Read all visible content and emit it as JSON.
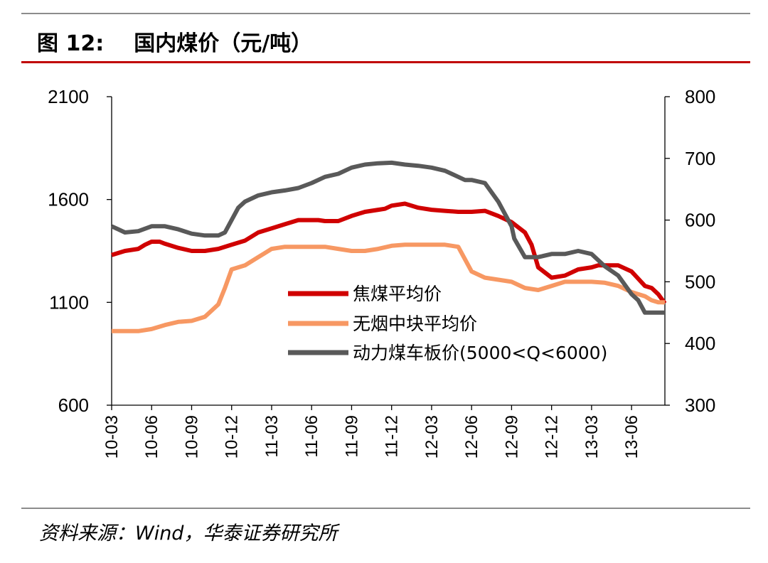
{
  "header": {
    "figure_label": "图 12:",
    "title": "国内煤价（元/吨）"
  },
  "footer": {
    "source": "资料来源：Wind，华泰证券研究所"
  },
  "colors": {
    "coke": "#d00000",
    "anthracite": "#f79863",
    "thermal": "#595959",
    "accent_rule": "#c00000"
  },
  "chart_data": {
    "type": "line",
    "title": "国内煤价（元/吨）",
    "x_tick_labels": [
      "10-03",
      "10-06",
      "10-09",
      "10-12",
      "11-03",
      "11-06",
      "11-09",
      "11-12",
      "12-03",
      "12-06",
      "12-09",
      "12-12",
      "13-03",
      "13-06"
    ],
    "x_range": [
      0,
      41.5
    ],
    "y_left": {
      "range": [
        600,
        2100
      ],
      "ticks": [
        600,
        1100,
        1600,
        2100
      ]
    },
    "y_right": {
      "range": [
        300,
        800
      ],
      "ticks": [
        300,
        400,
        500,
        600,
        700,
        800
      ]
    },
    "legend": {
      "position": "center-right",
      "entries": [
        "焦煤平均价",
        "无烟中块平均价",
        "动力煤车板价(5000<Q<6000)"
      ]
    },
    "series": [
      {
        "name": "焦煤平均价",
        "axis": "left",
        "color_key": "coke",
        "x": [
          0,
          0.5,
          1,
          2,
          2.5,
          3,
          3.6,
          4,
          5,
          6,
          7,
          8,
          9,
          10,
          11,
          12,
          13,
          13.5,
          14,
          15,
          15.5,
          16,
          17,
          18,
          19,
          20,
          20.5,
          21,
          22,
          23,
          24,
          25,
          26,
          26.5,
          27,
          28,
          29,
          30,
          31,
          31.5,
          32,
          33,
          34,
          35,
          36,
          36.5,
          37,
          38,
          39,
          40,
          40.5,
          41,
          41.5
        ],
        "y": [
          1330,
          1340,
          1350,
          1360,
          1380,
          1395,
          1395,
          1385,
          1365,
          1350,
          1350,
          1360,
          1380,
          1400,
          1440,
          1460,
          1480,
          1490,
          1500,
          1500,
          1500,
          1495,
          1495,
          1520,
          1540,
          1550,
          1555,
          1570,
          1580,
          1560,
          1550,
          1545,
          1540,
          1540,
          1540,
          1545,
          1520,
          1490,
          1440,
          1380,
          1270,
          1220,
          1230,
          1260,
          1270,
          1280,
          1280,
          1280,
          1250,
          1180,
          1170,
          1140,
          1095
        ]
      },
      {
        "name": "无烟中块平均价",
        "axis": "left",
        "color_key": "anthracite",
        "x": [
          0,
          1,
          2,
          3,
          4,
          5,
          6,
          7,
          7.5,
          8,
          8.5,
          9,
          9.5,
          10,
          11,
          11.5,
          12,
          13,
          14,
          15,
          16,
          17,
          18,
          19,
          20,
          21,
          22,
          23,
          24,
          25,
          26,
          26.5,
          27,
          28,
          29,
          30,
          31,
          32,
          33,
          34,
          35,
          36,
          37,
          38,
          39,
          40,
          40.5,
          41,
          41.5
        ],
        "y": [
          960,
          960,
          960,
          970,
          990,
          1005,
          1010,
          1030,
          1060,
          1090,
          1170,
          1260,
          1270,
          1280,
          1320,
          1340,
          1360,
          1370,
          1370,
          1370,
          1370,
          1360,
          1350,
          1350,
          1360,
          1375,
          1380,
          1380,
          1380,
          1380,
          1370,
          1310,
          1250,
          1220,
          1210,
          1200,
          1170,
          1160,
          1180,
          1200,
          1200,
          1200,
          1195,
          1180,
          1150,
          1130,
          1110,
          1100,
          1100
        ]
      },
      {
        "name": "动力煤车板价(5000<Q<6000)",
        "axis": "right",
        "color_key": "thermal",
        "x": [
          0,
          0.5,
          1,
          2,
          3,
          4,
          5,
          6,
          7,
          8,
          8.5,
          9,
          9.5,
          10,
          11,
          12,
          13,
          14,
          15,
          16,
          17,
          18,
          19,
          20,
          21,
          22,
          23,
          24,
          25,
          26,
          26.5,
          27,
          28,
          29,
          30,
          30.2,
          31,
          32,
          33,
          34,
          35,
          36,
          37,
          38,
          39,
          39.5,
          40,
          41,
          41.5
        ],
        "y": [
          590,
          585,
          580,
          582,
          590,
          590,
          585,
          578,
          575,
          575,
          580,
          600,
          620,
          630,
          640,
          645,
          648,
          652,
          660,
          670,
          675,
          685,
          690,
          692,
          693,
          690,
          688,
          685,
          680,
          670,
          665,
          665,
          660,
          630,
          590,
          570,
          540,
          540,
          545,
          545,
          550,
          545,
          525,
          510,
          480,
          470,
          450,
          450,
          450
        ]
      }
    ]
  }
}
